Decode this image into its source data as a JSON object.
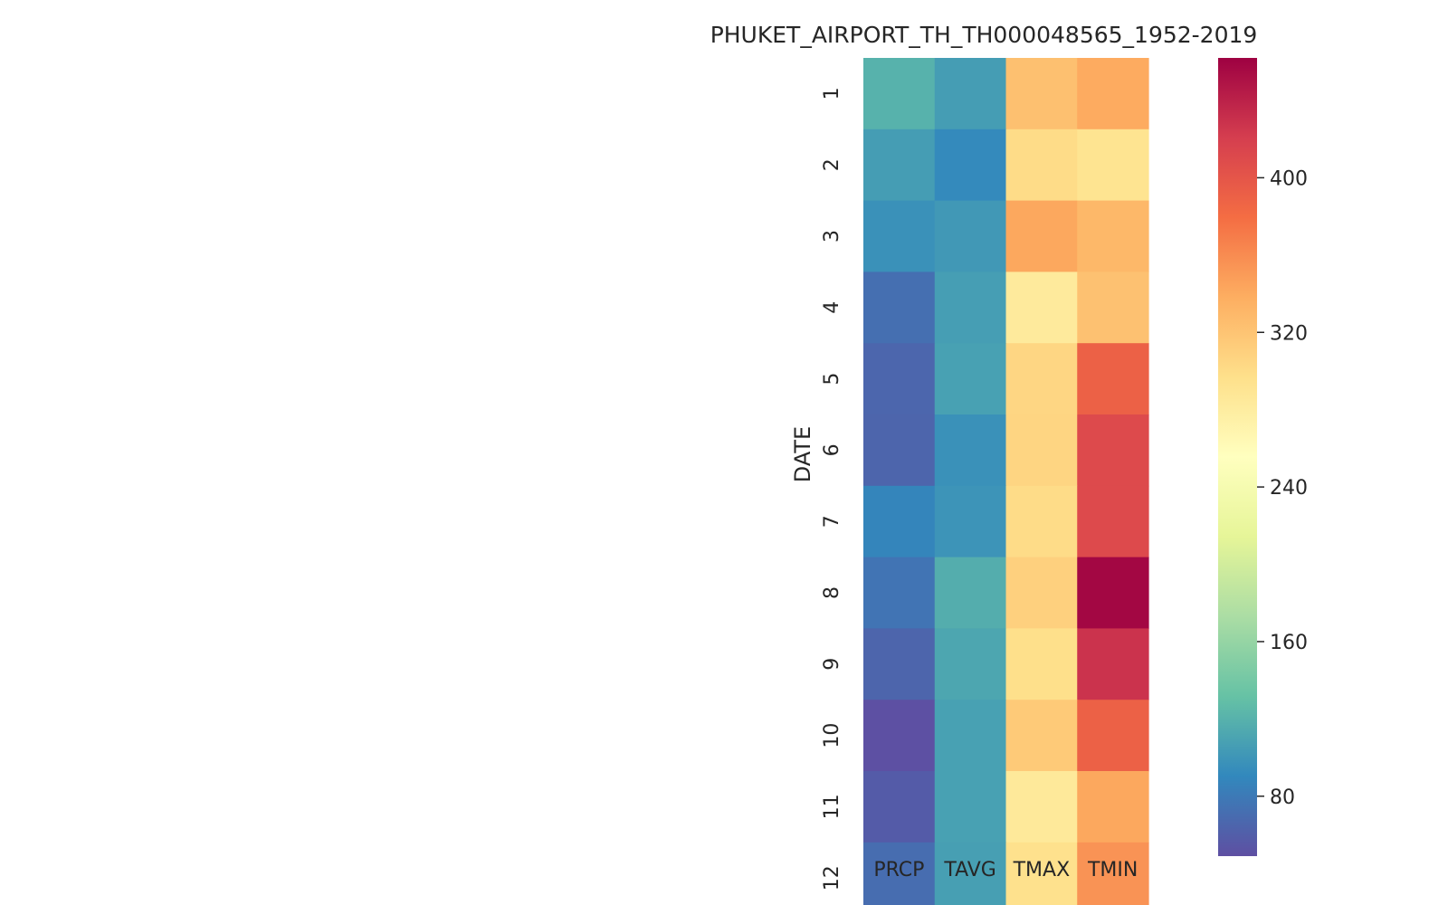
{
  "chart_data": {
    "type": "heatmap",
    "title": "PHUKET_AIRPORT_TH_TH000048565_1952-2019",
    "xlabel": "",
    "ylabel": "DATE",
    "columns": [
      "PRCP",
      "TAVG",
      "TMAX",
      "TMIN"
    ],
    "rows": [
      "1",
      "2",
      "3",
      "4",
      "5",
      "6",
      "7",
      "8",
      "9",
      "10",
      "11",
      "12"
    ],
    "values": [
      [
        120,
        105,
        323,
        340
      ],
      [
        105,
        92,
        300,
        292
      ],
      [
        97,
        102,
        342,
        330
      ],
      [
        72,
        106,
        283,
        322
      ],
      [
        66,
        108,
        305,
        390
      ],
      [
        65,
        97,
        306,
        410
      ],
      [
        88,
        99,
        300,
        410
      ],
      [
        76,
        117,
        310,
        458
      ],
      [
        65,
        112,
        297,
        428
      ],
      [
        50,
        108,
        315,
        390
      ],
      [
        58,
        108,
        285,
        342
      ],
      [
        71,
        107,
        295,
        355
      ]
    ],
    "colorscale": "Spectral_r",
    "colorbar": {
      "vmin": 49,
      "vmax": 462,
      "ticks": [
        80,
        160,
        240,
        320,
        400
      ]
    },
    "grid": false
  }
}
